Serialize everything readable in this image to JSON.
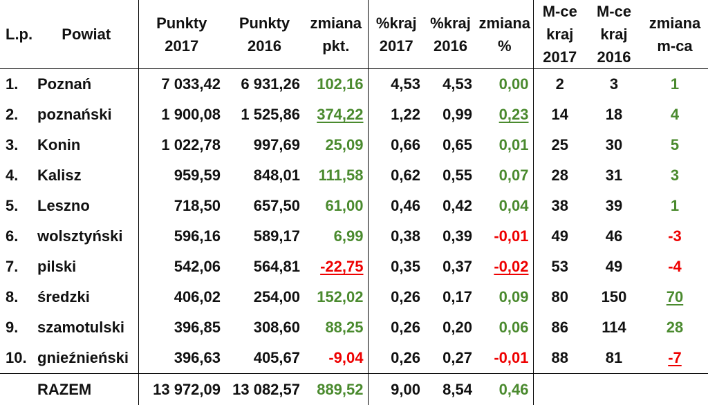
{
  "headers": {
    "lp": "L.p.",
    "powiat": "Powiat",
    "pkt2017": [
      "Punkty",
      "2017"
    ],
    "pkt2016": [
      "Punkty",
      "2016"
    ],
    "zmiana_pkt": [
      "zmiana",
      "pkt."
    ],
    "kraj2017": [
      "%kraj",
      "2017"
    ],
    "kraj2016": [
      "%kraj",
      "2016"
    ],
    "zmiana_proc": [
      "zmiana",
      "%"
    ],
    "mce2017": [
      "M-ce",
      "kraj",
      "2017"
    ],
    "mce2016": [
      "M-ce",
      "kraj",
      "2016"
    ],
    "zmiana_mca": [
      "zmiana",
      "m-ca"
    ]
  },
  "rows": [
    {
      "lp": "1.",
      "powiat": "Poznań",
      "pkt2017": "7 033,42",
      "pkt2016": "6 931,26",
      "zmiana_pkt": "102,16",
      "kraj2017": "4,53",
      "kraj2016": "4,53",
      "zmiana_proc": "0,00",
      "mce2017": "2",
      "mce2016": "3",
      "zmiana_mca": "1"
    },
    {
      "lp": "2.",
      "powiat": "poznański",
      "pkt2017": "1 900,08",
      "pkt2016": "1 525,86",
      "zmiana_pkt": "374,22",
      "kraj2017": "1,22",
      "kraj2016": "0,99",
      "zmiana_proc": "0,23",
      "mce2017": "14",
      "mce2016": "18",
      "zmiana_mca": "4"
    },
    {
      "lp": "3.",
      "powiat": "Konin",
      "pkt2017": "1 022,78",
      "pkt2016": "997,69",
      "zmiana_pkt": "25,09",
      "kraj2017": "0,66",
      "kraj2016": "0,65",
      "zmiana_proc": "0,01",
      "mce2017": "25",
      "mce2016": "30",
      "zmiana_mca": "5"
    },
    {
      "lp": "4.",
      "powiat": "Kalisz",
      "pkt2017": "959,59",
      "pkt2016": "848,01",
      "zmiana_pkt": "111,58",
      "kraj2017": "0,62",
      "kraj2016": "0,55",
      "zmiana_proc": "0,07",
      "mce2017": "28",
      "mce2016": "31",
      "zmiana_mca": "3"
    },
    {
      "lp": "5.",
      "powiat": "Leszno",
      "pkt2017": "718,50",
      "pkt2016": "657,50",
      "zmiana_pkt": "61,00",
      "kraj2017": "0,46",
      "kraj2016": "0,42",
      "zmiana_proc": "0,04",
      "mce2017": "38",
      "mce2016": "39",
      "zmiana_mca": "1"
    },
    {
      "lp": "6.",
      "powiat": "wolsztyński",
      "pkt2017": "596,16",
      "pkt2016": "589,17",
      "zmiana_pkt": "6,99",
      "kraj2017": "0,38",
      "kraj2016": "0,39",
      "zmiana_proc": "-0,01",
      "mce2017": "49",
      "mce2016": "46",
      "zmiana_mca": "-3"
    },
    {
      "lp": "7.",
      "powiat": "pilski",
      "pkt2017": "542,06",
      "pkt2016": "564,81",
      "zmiana_pkt": "-22,75",
      "kraj2017": "0,35",
      "kraj2016": "0,37",
      "zmiana_proc": "-0,02",
      "mce2017": "53",
      "mce2016": "49",
      "zmiana_mca": "-4"
    },
    {
      "lp": "8.",
      "powiat": "średzki",
      "pkt2017": "406,02",
      "pkt2016": "254,00",
      "zmiana_pkt": "152,02",
      "kraj2017": "0,26",
      "kraj2016": "0,17",
      "zmiana_proc": "0,09",
      "mce2017": "80",
      "mce2016": "150",
      "zmiana_mca": "70"
    },
    {
      "lp": "9.",
      "powiat": "szamotulski",
      "pkt2017": "396,85",
      "pkt2016": "308,60",
      "zmiana_pkt": "88,25",
      "kraj2017": "0,26",
      "kraj2016": "0,20",
      "zmiana_proc": "0,06",
      "mce2017": "86",
      "mce2016": "114",
      "zmiana_mca": "28"
    },
    {
      "lp": "10.",
      "powiat": "gnieźnieński",
      "pkt2017": "396,63",
      "pkt2016": "405,67",
      "zmiana_pkt": "-9,04",
      "kraj2017": "0,26",
      "kraj2016": "0,27",
      "zmiana_proc": "-0,01",
      "mce2017": "88",
      "mce2016": "81",
      "zmiana_mca": "-7"
    }
  ],
  "total": {
    "label": "RAZEM",
    "pkt2017": "13 972,09",
    "pkt2016": "13 082,57",
    "zmiana_pkt": "889,52",
    "kraj2017": "9,00",
    "kraj2016": "8,54",
    "zmiana_proc": "0,46"
  },
  "colors": {
    "positive": "#4a8a2e",
    "negative": "#ee0000",
    "text": "#111111"
  }
}
